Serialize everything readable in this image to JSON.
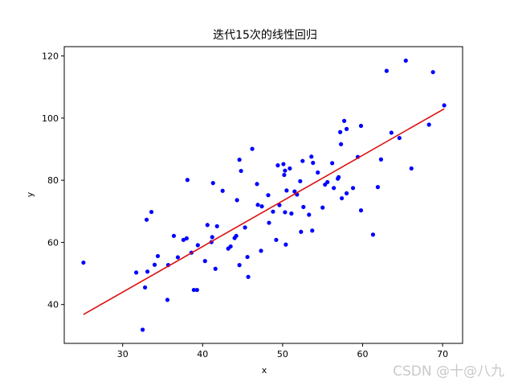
{
  "chart_data": {
    "type": "scatter",
    "title": "迭代15次的线性回归",
    "xlabel": "x",
    "ylabel": "y",
    "xlim": [
      22.7,
      72.5
    ],
    "ylim": [
      27.5,
      123
    ],
    "xticks": [
      30,
      40,
      50,
      60,
      70
    ],
    "yticks": [
      40,
      60,
      80,
      100,
      120
    ],
    "grid": false,
    "legend": "none",
    "colors": {
      "points": "#0000ff",
      "line": "#dd1111"
    },
    "series": [
      {
        "kind": "points",
        "points": [
          [
            25.1,
            53.5
          ],
          [
            31.7,
            50.3
          ],
          [
            32.5,
            31.9
          ],
          [
            32.8,
            45.5
          ],
          [
            33.0,
            67.3
          ],
          [
            33.1,
            50.6
          ],
          [
            33.6,
            69.8
          ],
          [
            34.0,
            52.8
          ],
          [
            34.4,
            55.6
          ],
          [
            35.6,
            41.5
          ],
          [
            35.7,
            52.7
          ],
          [
            36.4,
            62.1
          ],
          [
            36.9,
            55.2
          ],
          [
            37.6,
            60.8
          ],
          [
            38.0,
            61.3
          ],
          [
            38.1,
            80.1
          ],
          [
            38.6,
            56.7
          ],
          [
            38.9,
            44.7
          ],
          [
            39.3,
            44.7
          ],
          [
            39.4,
            59.1
          ],
          [
            40.3,
            54.0
          ],
          [
            40.6,
            65.6
          ],
          [
            41.1,
            60.1
          ],
          [
            41.2,
            61.7
          ],
          [
            41.3,
            79.1
          ],
          [
            41.6,
            51.5
          ],
          [
            41.8,
            65.2
          ],
          [
            42.5,
            76.6
          ],
          [
            43.2,
            58.0
          ],
          [
            43.5,
            58.7
          ],
          [
            44.0,
            61.4
          ],
          [
            44.2,
            62.1
          ],
          [
            44.3,
            73.6
          ],
          [
            44.6,
            52.7
          ],
          [
            44.6,
            86.6
          ],
          [
            44.8,
            83.0
          ],
          [
            45.3,
            64.8
          ],
          [
            45.6,
            55.3
          ],
          [
            45.7,
            48.9
          ],
          [
            46.2,
            90.1
          ],
          [
            46.8,
            78.8
          ],
          [
            46.9,
            72.1
          ],
          [
            47.3,
            57.3
          ],
          [
            47.4,
            71.6
          ],
          [
            48.2,
            75.2
          ],
          [
            48.3,
            66.3
          ],
          [
            48.8,
            69.9
          ],
          [
            49.2,
            60.8
          ],
          [
            49.4,
            84.8
          ],
          [
            49.6,
            72.0
          ],
          [
            50.1,
            85.2
          ],
          [
            50.2,
            81.7
          ],
          [
            50.3,
            83.1
          ],
          [
            50.3,
            69.7
          ],
          [
            50.4,
            59.3
          ],
          [
            50.5,
            76.7
          ],
          [
            50.9,
            83.8
          ],
          [
            51.1,
            69.3
          ],
          [
            51.5,
            76.4
          ],
          [
            51.8,
            75.4
          ],
          [
            52.2,
            79.7
          ],
          [
            52.3,
            63.4
          ],
          [
            52.5,
            86.2
          ],
          [
            52.6,
            71.4
          ],
          [
            53.3,
            68.9
          ],
          [
            53.6,
            87.6
          ],
          [
            53.7,
            63.8
          ],
          [
            53.8,
            85.6
          ],
          [
            54.4,
            82.5
          ],
          [
            55.0,
            71.2
          ],
          [
            55.3,
            78.6
          ],
          [
            55.6,
            79.4
          ],
          [
            56.2,
            85.5
          ],
          [
            56.4,
            77.5
          ],
          [
            56.9,
            80.5
          ],
          [
            57.0,
            81.0
          ],
          [
            57.2,
            95.5
          ],
          [
            57.3,
            91.6
          ],
          [
            57.4,
            74.2
          ],
          [
            57.7,
            99.1
          ],
          [
            58.0,
            96.5
          ],
          [
            58.0,
            75.8
          ],
          [
            58.8,
            77.5
          ],
          [
            59.4,
            87.5
          ],
          [
            59.8,
            97.5
          ],
          [
            59.8,
            70.3
          ],
          [
            61.3,
            62.5
          ],
          [
            61.9,
            77.8
          ],
          [
            62.3,
            86.7
          ],
          [
            63.0,
            115.2
          ],
          [
            63.6,
            95.3
          ],
          [
            64.6,
            93.6
          ],
          [
            65.4,
            118.5
          ],
          [
            66.1,
            83.8
          ],
          [
            68.3,
            97.9
          ],
          [
            68.8,
            114.8
          ],
          [
            70.2,
            104.1
          ]
        ]
      },
      {
        "kind": "line",
        "points": [
          [
            25.1,
            36.8
          ],
          [
            70.2,
            103.0
          ]
        ]
      }
    ]
  },
  "watermark": "CSDN @十@八九"
}
